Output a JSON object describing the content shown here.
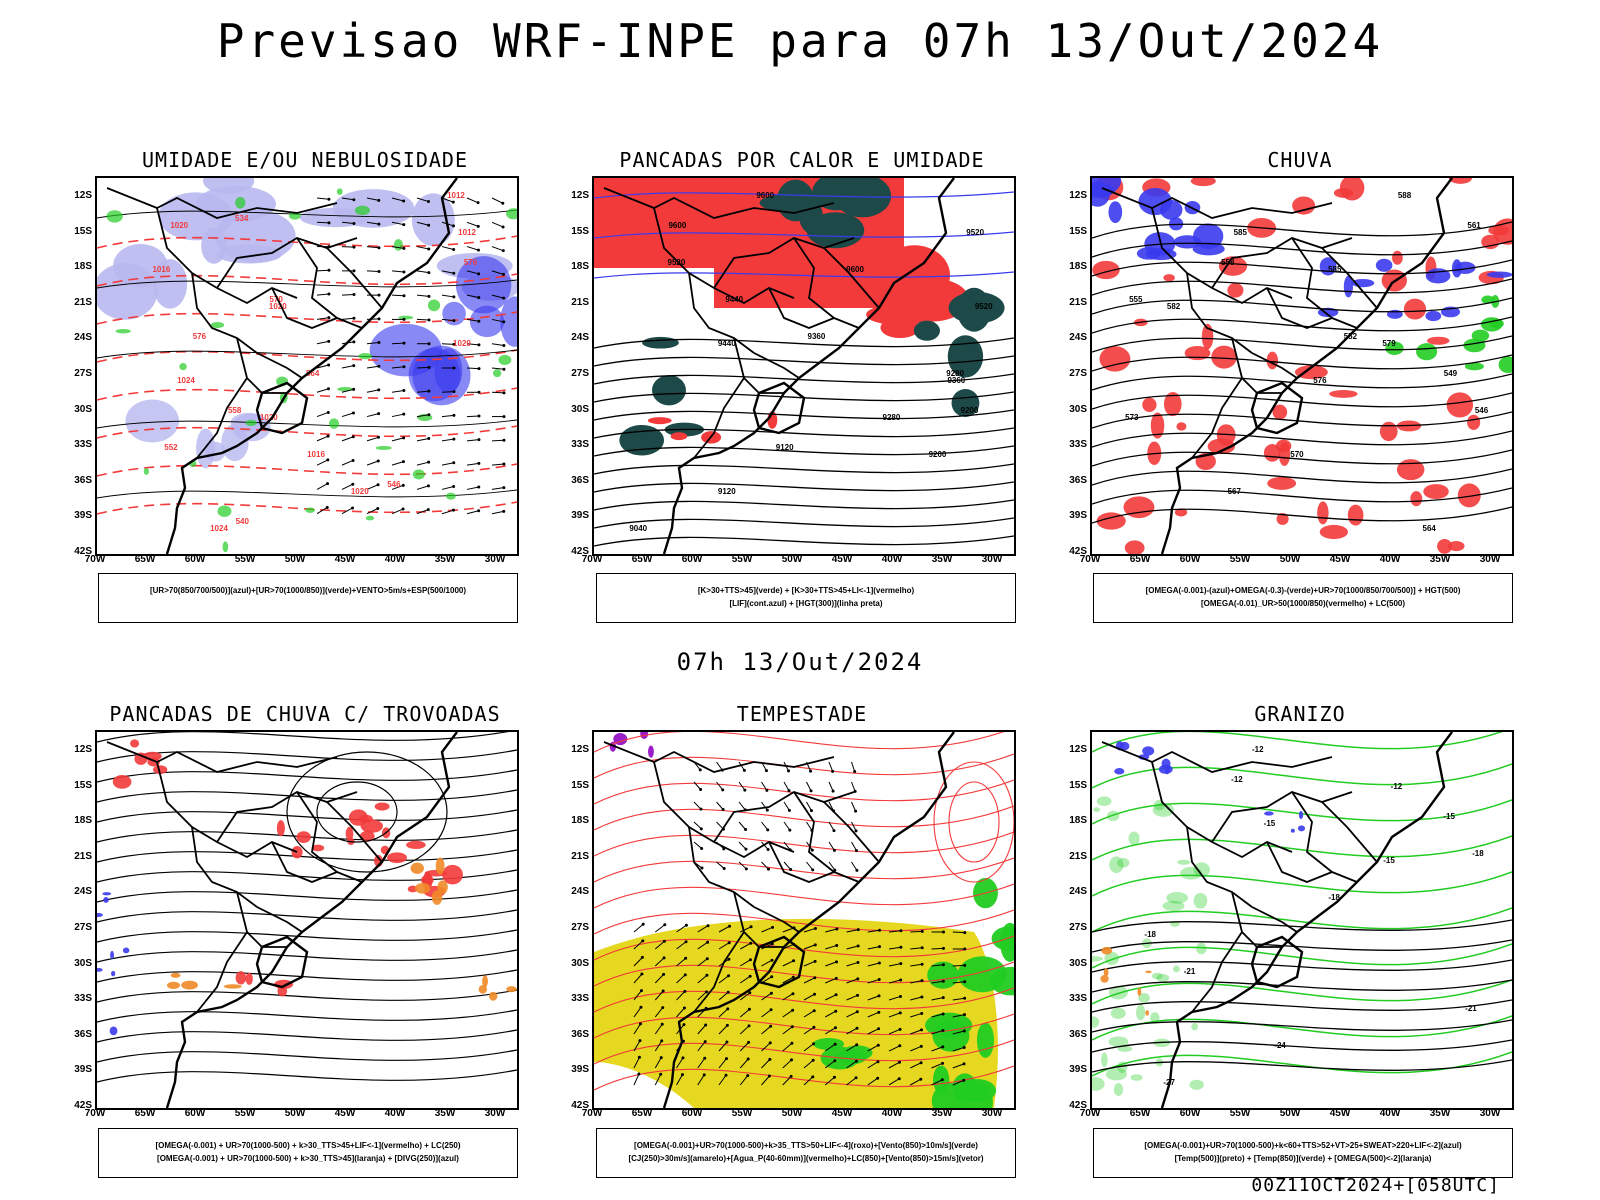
{
  "page": {
    "title": "Previsao WRF-INPE  para 07h 13/Out/2024",
    "middle_title": "07h 13/Out/2024",
    "footer": "00Z11OCT2024+[058UTC]"
  },
  "axes": {
    "lat_labels": [
      "12S",
      "15S",
      "18S",
      "21S",
      "24S",
      "27S",
      "30S",
      "33S",
      "36S",
      "39S",
      "42S"
    ],
    "lon_labels": [
      "70W",
      "65W",
      "60W",
      "55W",
      "50W",
      "45W",
      "40W",
      "35W",
      "30W"
    ]
  },
  "colors": {
    "red": "#f23a3a",
    "blue": "#3a3aee",
    "green": "#22cc22",
    "lightblue": "#b8b8f0",
    "darkteal": "#1d4a48",
    "yellow": "#e6d820",
    "orange": "#f08a28",
    "purple": "#9b1fc8"
  },
  "panels": [
    {
      "title": "UMIDADE E/OU NEBULOSIDADE",
      "legend": [
        "[UR>70(850/700/500)](azul)+[UR>70(1000/850)](verde)+VENTO>5m/s+ESP(500/1000)"
      ],
      "contour_labels": [
        "1012",
        "1012",
        "1016",
        "1020",
        "1020",
        "1024",
        "1020",
        "1016",
        "1020",
        "1024",
        "1020",
        "576",
        "570",
        "576",
        "564",
        "558",
        "552",
        "546",
        "540",
        "534"
      ]
    },
    {
      "title": "PANCADAS POR CALOR E UMIDADE",
      "legend": [
        "[K>30+TTS>45](verde)  +  [K>30+TTS>45+LI<-1](vermelho)",
        "[LIF](cont.azul)  +  [HGT(300)](linha preta)"
      ],
      "contour_labels": [
        "9600",
        "9520",
        "9600",
        "9520",
        "9440",
        "9360",
        "9280",
        "9200",
        "9120",
        "9040",
        "9600",
        "9520",
        "9440",
        "9360",
        "9280",
        "9200",
        "9120"
      ]
    },
    {
      "title": "CHUVA",
      "legend": [
        "[OMEGA(-0.001)-(azul)+OMEGA(-0.3)-(verde)+UR>70(1000/850/700/500)]  +  HGT(500)",
        "[OMEGA(-0.01)_UR>50(1000/850)(vermelho)  +  LC(500)"
      ],
      "contour_labels": [
        "588",
        "585",
        "585",
        "582",
        "579",
        "576",
        "573",
        "570",
        "567",
        "564",
        "561",
        "558",
        "555",
        "552",
        "549",
        "546"
      ]
    },
    {
      "title": "PANCADAS DE CHUVA C/ TROVOADAS",
      "legend": [
        "[OMEGA(-0.001)  +  UR>70(1000-500)  +  k>30_TTS>45+LIF<-1](vermelho)  +  LC(250)",
        "[OMEGA(-0.001)  +  UR>70(1000-500)  +  k>30_TTS>45](laranja)  +  [DIVG(250)](azul)"
      ],
      "contour_labels": []
    },
    {
      "title": "TEMPESTADE",
      "legend": [
        "[OMEGA(-0.001)+UR>70(1000-500)+k>35_TTS>50+LIF<-4](roxo)+[Vento(850)>10m/s](verde)",
        "[CJ(250)>30m/s](amarelo)+[Agua_P(40-60mm)](vermelho)+LC(850)+[Vento(850)>15m/s](vetor)"
      ],
      "contour_labels": []
    },
    {
      "title": "GRANIZO",
      "legend": [
        "[OMEGA(-0.001)+UR>70(1000-500)+k<60+TTS>52+VT>25+SWEAT>220+LIF<-2](azul)",
        "[Temp(500)](preto)  +  [Temp(850)](verde)  +  [OMEGA(500)<-2](laranja)"
      ],
      "contour_labels": [
        "-12",
        "-12",
        "-15",
        "-15",
        "-18",
        "-18",
        "-21",
        "-21",
        "-24",
        "-27",
        "-12",
        "-15",
        "-18"
      ]
    }
  ]
}
